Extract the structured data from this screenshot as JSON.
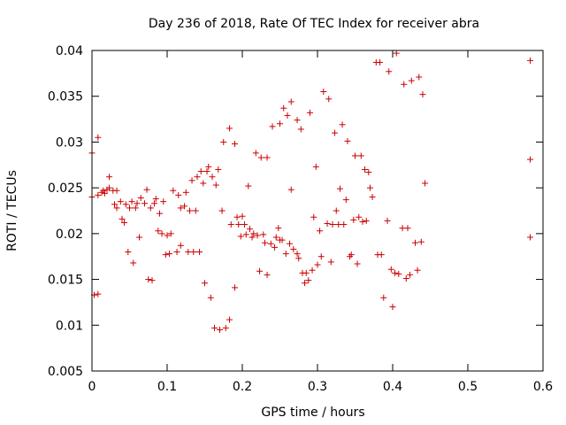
{
  "chart_data": {
    "type": "scatter",
    "title": "Day 236 of 2018, Rate Of TEC Index for receiver abra",
    "xlabel": "GPS time / hours",
    "ylabel": "ROTI / TECUs",
    "xlim": [
      0,
      0.6
    ],
    "ylim": [
      0.005,
      0.04
    ],
    "xticks": [
      "0",
      "0.1",
      "0.2",
      "0.3",
      "0.4",
      "0.5",
      "0.6"
    ],
    "yticks": [
      "0.005",
      "0.01",
      "0.015",
      "0.02",
      "0.025",
      "0.03",
      "0.035",
      "0.04"
    ],
    "marker": "plus",
    "marker_color": "#cc0000",
    "series": [
      {
        "name": "ROTI",
        "points": [
          [
            0.0,
            0.0288
          ],
          [
            0.0,
            0.024
          ],
          [
            0.003,
            0.0133
          ],
          [
            0.008,
            0.0305
          ],
          [
            0.008,
            0.0134
          ],
          [
            0.008,
            0.0242
          ],
          [
            0.013,
            0.0245
          ],
          [
            0.015,
            0.0247
          ],
          [
            0.017,
            0.0244
          ],
          [
            0.02,
            0.0248
          ],
          [
            0.023,
            0.0262
          ],
          [
            0.023,
            0.025
          ],
          [
            0.028,
            0.0247
          ],
          [
            0.03,
            0.0232
          ],
          [
            0.033,
            0.0247
          ],
          [
            0.033,
            0.0228
          ],
          [
            0.038,
            0.0235
          ],
          [
            0.04,
            0.0216
          ],
          [
            0.043,
            0.0212
          ],
          [
            0.045,
            0.0232
          ],
          [
            0.048,
            0.018
          ],
          [
            0.05,
            0.0228
          ],
          [
            0.053,
            0.0235
          ],
          [
            0.055,
            0.0168
          ],
          [
            0.058,
            0.0228
          ],
          [
            0.06,
            0.0233
          ],
          [
            0.063,
            0.0196
          ],
          [
            0.065,
            0.0239
          ],
          [
            0.07,
            0.0233
          ],
          [
            0.073,
            0.0248
          ],
          [
            0.075,
            0.015
          ],
          [
            0.078,
            0.0228
          ],
          [
            0.08,
            0.0149
          ],
          [
            0.083,
            0.0233
          ],
          [
            0.085,
            0.0238
          ],
          [
            0.088,
            0.0203
          ],
          [
            0.09,
            0.0222
          ],
          [
            0.093,
            0.02
          ],
          [
            0.095,
            0.0235
          ],
          [
            0.098,
            0.0177
          ],
          [
            0.1,
            0.0198
          ],
          [
            0.103,
            0.0178
          ],
          [
            0.105,
            0.02
          ],
          [
            0.108,
            0.0247
          ],
          [
            0.113,
            0.018
          ],
          [
            0.115,
            0.0242
          ],
          [
            0.118,
            0.0187
          ],
          [
            0.118,
            0.0228
          ],
          [
            0.123,
            0.023
          ],
          [
            0.125,
            0.0245
          ],
          [
            0.128,
            0.018
          ],
          [
            0.13,
            0.0225
          ],
          [
            0.133,
            0.0258
          ],
          [
            0.135,
            0.018
          ],
          [
            0.138,
            0.0225
          ],
          [
            0.14,
            0.0262
          ],
          [
            0.143,
            0.018
          ],
          [
            0.145,
            0.0268
          ],
          [
            0.148,
            0.0255
          ],
          [
            0.15,
            0.0146
          ],
          [
            0.153,
            0.0268
          ],
          [
            0.155,
            0.0273
          ],
          [
            0.158,
            0.013
          ],
          [
            0.16,
            0.0262
          ],
          [
            0.163,
            0.0097
          ],
          [
            0.165,
            0.0253
          ],
          [
            0.168,
            0.027
          ],
          [
            0.17,
            0.0095
          ],
          [
            0.173,
            0.0225
          ],
          [
            0.175,
            0.03
          ],
          [
            0.178,
            0.0097
          ],
          [
            0.183,
            0.0106
          ],
          [
            0.183,
            0.0315
          ],
          [
            0.185,
            0.021
          ],
          [
            0.19,
            0.0141
          ],
          [
            0.19,
            0.0298
          ],
          [
            0.193,
            0.0218
          ],
          [
            0.195,
            0.021
          ],
          [
            0.198,
            0.0197
          ],
          [
            0.2,
            0.0219
          ],
          [
            0.203,
            0.021
          ],
          [
            0.205,
            0.0199
          ],
          [
            0.208,
            0.0252
          ],
          [
            0.21,
            0.0205
          ],
          [
            0.213,
            0.0196
          ],
          [
            0.215,
            0.02
          ],
          [
            0.218,
            0.0288
          ],
          [
            0.22,
            0.0198
          ],
          [
            0.223,
            0.0159
          ],
          [
            0.225,
            0.0283
          ],
          [
            0.228,
            0.0199
          ],
          [
            0.23,
            0.019
          ],
          [
            0.233,
            0.0155
          ],
          [
            0.233,
            0.0283
          ],
          [
            0.238,
            0.0189
          ],
          [
            0.24,
            0.0317
          ],
          [
            0.243,
            0.0185
          ],
          [
            0.245,
            0.0196
          ],
          [
            0.248,
            0.0206
          ],
          [
            0.25,
            0.032
          ],
          [
            0.25,
            0.0193
          ],
          [
            0.253,
            0.0193
          ],
          [
            0.255,
            0.0337
          ],
          [
            0.258,
            0.0178
          ],
          [
            0.26,
            0.0329
          ],
          [
            0.263,
            0.0189
          ],
          [
            0.265,
            0.0248
          ],
          [
            0.265,
            0.0344
          ],
          [
            0.268,
            0.0183
          ],
          [
            0.273,
            0.0324
          ],
          [
            0.273,
            0.0178
          ],
          [
            0.275,
            0.0173
          ],
          [
            0.278,
            0.0314
          ],
          [
            0.28,
            0.0157
          ],
          [
            0.283,
            0.0146
          ],
          [
            0.285,
            0.0157
          ],
          [
            0.288,
            0.0149
          ],
          [
            0.29,
            0.0332
          ],
          [
            0.293,
            0.016
          ],
          [
            0.295,
            0.0218
          ],
          [
            0.298,
            0.0273
          ],
          [
            0.3,
            0.0166
          ],
          [
            0.303,
            0.0203
          ],
          [
            0.305,
            0.0175
          ],
          [
            0.308,
            0.0355
          ],
          [
            0.313,
            0.0211
          ],
          [
            0.315,
            0.0347
          ],
          [
            0.318,
            0.0169
          ],
          [
            0.32,
            0.021
          ],
          [
            0.323,
            0.031
          ],
          [
            0.325,
            0.0225
          ],
          [
            0.328,
            0.021
          ],
          [
            0.33,
            0.0249
          ],
          [
            0.333,
            0.0319
          ],
          [
            0.335,
            0.021
          ],
          [
            0.338,
            0.0237
          ],
          [
            0.34,
            0.0301
          ],
          [
            0.343,
            0.0175
          ],
          [
            0.345,
            0.0177
          ],
          [
            0.348,
            0.0215
          ],
          [
            0.35,
            0.0285
          ],
          [
            0.353,
            0.0167
          ],
          [
            0.355,
            0.0218
          ],
          [
            0.358,
            0.0285
          ],
          [
            0.36,
            0.0213
          ],
          [
            0.363,
            0.027
          ],
          [
            0.365,
            0.0214
          ],
          [
            0.368,
            0.0267
          ],
          [
            0.37,
            0.025
          ],
          [
            0.373,
            0.024
          ],
          [
            0.378,
            0.0387
          ],
          [
            0.38,
            0.0177
          ],
          [
            0.383,
            0.0387
          ],
          [
            0.385,
            0.0177
          ],
          [
            0.388,
            0.013
          ],
          [
            0.393,
            0.0214
          ],
          [
            0.395,
            0.0377
          ],
          [
            0.398,
            0.0161
          ],
          [
            0.4,
            0.012
          ],
          [
            0.403,
            0.0157
          ],
          [
            0.405,
            0.0397
          ],
          [
            0.408,
            0.0156
          ],
          [
            0.413,
            0.0206
          ],
          [
            0.415,
            0.0363
          ],
          [
            0.418,
            0.0151
          ],
          [
            0.42,
            0.0206
          ],
          [
            0.423,
            0.0155
          ],
          [
            0.425,
            0.0367
          ],
          [
            0.43,
            0.019
          ],
          [
            0.433,
            0.016
          ],
          [
            0.435,
            0.0371
          ],
          [
            0.438,
            0.0191
          ],
          [
            0.44,
            0.0352
          ],
          [
            0.443,
            0.0255
          ],
          [
            0.583,
            0.0389
          ],
          [
            0.583,
            0.0281
          ],
          [
            0.583,
            0.0196
          ]
        ]
      }
    ]
  }
}
